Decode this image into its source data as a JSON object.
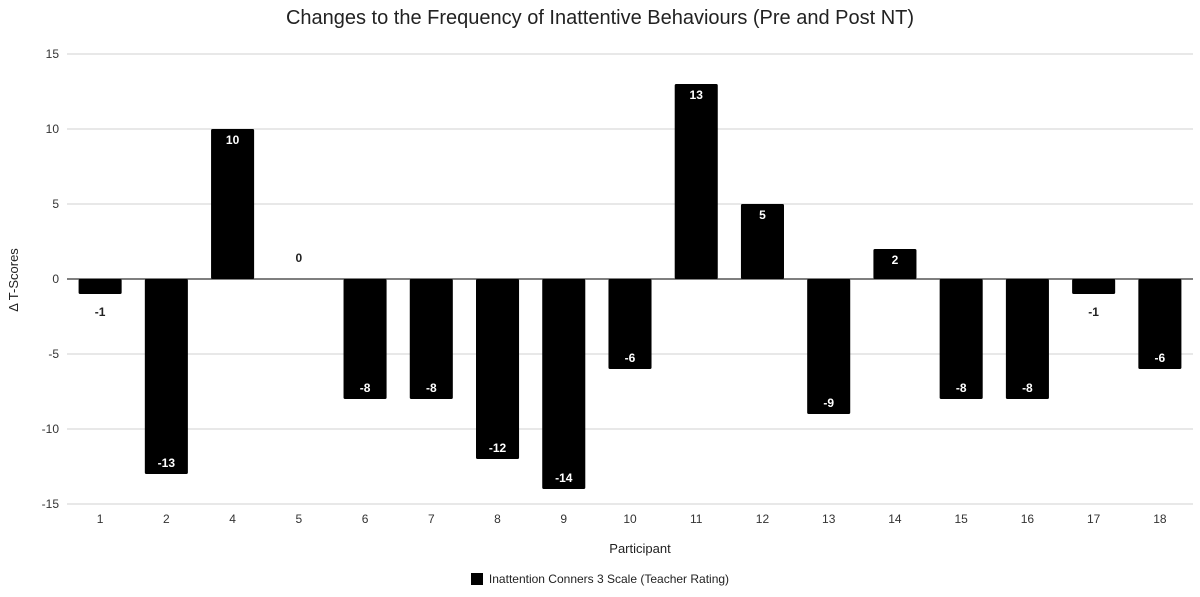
{
  "chart_data": {
    "type": "bar",
    "title": "Changes to the Frequency of Inattentive Behaviours (Pre and Post NT)",
    "xlabel": "Participant",
    "ylabel": "Δ T-Scores",
    "ylim": [
      -15,
      15
    ],
    "yticks": [
      -15,
      -10,
      -5,
      0,
      5,
      10,
      15
    ],
    "grid": true,
    "legend_position": "bottom",
    "categories": [
      "1",
      "2",
      "4",
      "5",
      "6",
      "7",
      "8",
      "9",
      "10",
      "11",
      "12",
      "13",
      "14",
      "15",
      "16",
      "17",
      "18"
    ],
    "series": [
      {
        "name": "Inattention Conners 3 Scale (Teacher Rating)",
        "color": "#000000",
        "values": [
          -1,
          -13,
          10,
          0,
          -8,
          -8,
          -12,
          -14,
          -6,
          13,
          5,
          -9,
          2,
          -8,
          -8,
          -1,
          -6
        ]
      }
    ]
  }
}
